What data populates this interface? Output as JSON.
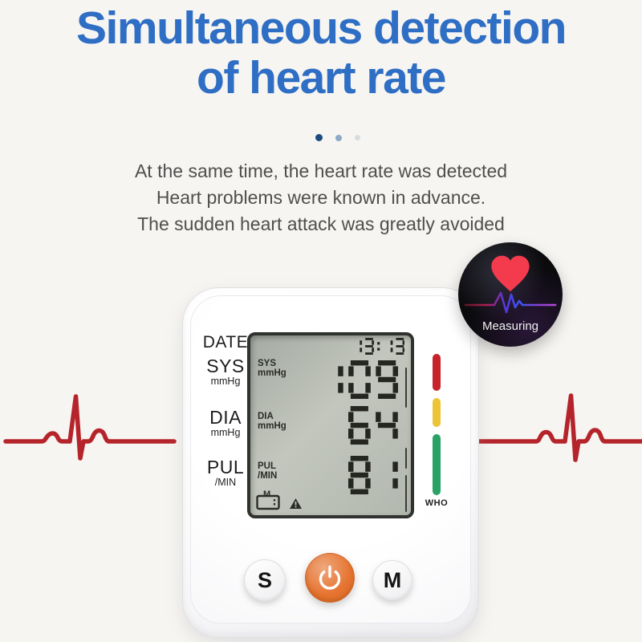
{
  "colors": {
    "background": "#f7f5f1",
    "headline": "#2e6ec4",
    "paragraph": "#4f4f4f",
    "ecg_red": "#b5242b",
    "dot1": "#1d4d80",
    "dot2": "#8fa9c9",
    "dot3": "#d7dce1",
    "lcd_segment": "#24261f",
    "power_button": "#e5732f",
    "badge_bg": "#0b0b0e",
    "badge_heart": "#f43b4e",
    "badge_text": "#f0f0f0"
  },
  "headline": {
    "line1": "Simultaneous detection",
    "line2": "of heart rate"
  },
  "paragraph": {
    "line1": "At the same time, the heart rate was detected",
    "line2": "Heart problems were known in advance.",
    "line3": "The sudden heart attack was greatly avoided"
  },
  "badge": {
    "label": "Measuring"
  },
  "device": {
    "side_labels": [
      {
        "main": "DATE",
        "sub": ""
      },
      {
        "main": "SYS",
        "sub": "mmHg"
      },
      {
        "main": "DIA",
        "sub": "mmHg"
      },
      {
        "main": "PUL",
        "sub": "/MIN"
      }
    ],
    "lcd": {
      "time": "13:13",
      "readings": [
        {
          "label": "SYS",
          "unit": "mmHg",
          "value": "109"
        },
        {
          "label": "DIA",
          "unit": "mmHg",
          "value": "64"
        },
        {
          "label": "PUL",
          "unit": "/MIN",
          "value": "81"
        }
      ],
      "memory_label": "M"
    },
    "who_label": "WHO",
    "who_colors": [
      "#c8232b",
      "#eec437",
      "#28a265"
    ],
    "buttons": {
      "left": "S",
      "right": "M"
    }
  }
}
